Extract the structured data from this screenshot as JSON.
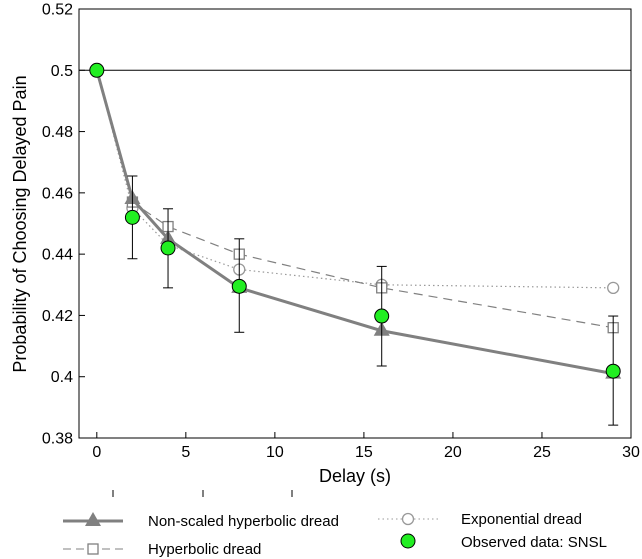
{
  "chart_data": {
    "type": "line",
    "xlabel": "Delay (s)",
    "ylabel": "Probability of Choosing Delayed Pain",
    "xlim": [
      -1,
      30
    ],
    "ylim": [
      0.38,
      0.52
    ],
    "xticks": [
      0,
      5,
      10,
      15,
      20,
      25,
      30
    ],
    "xtick_labels": [
      "0",
      "5",
      "10",
      "15",
      "20",
      "25",
      "30"
    ],
    "yticks": [
      0.38,
      0.4,
      0.42,
      0.44,
      0.46,
      0.48,
      0.5,
      0.52
    ],
    "ytick_labels": [
      "0.38",
      "0.4",
      "0.42",
      "0.44",
      "0.46",
      "0.48",
      "0.5",
      "0.52"
    ],
    "grid": false,
    "legend_position": "bottom",
    "reference_line": {
      "y": 0.5
    },
    "series": [
      {
        "name": "Non-scaled hyperbolic dread",
        "style": "solid-line-triangle",
        "color": "#808080",
        "x": [
          0,
          2,
          4,
          8,
          16,
          29
        ],
        "y": [
          0.5,
          0.458,
          0.445,
          0.429,
          0.415,
          0.401
        ]
      },
      {
        "name": "Hyperbolic dread",
        "style": "dashed-line-open-square",
        "color": "#808080",
        "x": [
          0,
          2,
          4,
          8,
          16,
          29
        ],
        "y": [
          0.5,
          0.457,
          0.449,
          0.44,
          0.429,
          0.416
        ]
      },
      {
        "name": "Exponential dread",
        "style": "dotted-line-open-circle",
        "color": "#999999",
        "x": [
          0,
          2,
          4,
          8,
          16,
          29
        ],
        "y": [
          0.5,
          0.455,
          0.443,
          0.435,
          0.43,
          0.429
        ]
      },
      {
        "name": "Observed data: SNSL",
        "style": "filled-circle-errorbar",
        "color": "#22ee22",
        "x": [
          0,
          2,
          4,
          8,
          16,
          29
        ],
        "y": [
          0.5,
          0.452,
          0.442,
          0.4295,
          0.4198,
          0.4018
        ],
        "err_low": [
          0.5,
          0.4385,
          0.429,
          0.4145,
          0.4035,
          0.3842
        ],
        "err_high": [
          0.5,
          0.4655,
          0.4548,
          0.445,
          0.436,
          0.4198
        ]
      }
    ]
  }
}
